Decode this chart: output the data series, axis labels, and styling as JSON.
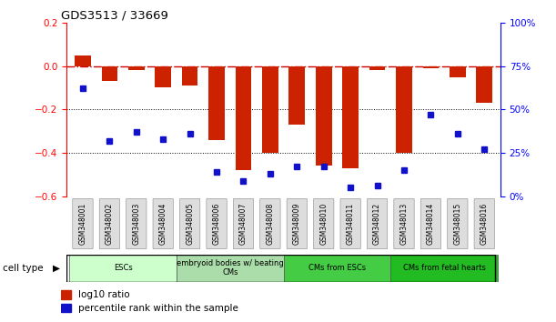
{
  "title": "GDS3513 / 33669",
  "samples": [
    "GSM348001",
    "GSM348002",
    "GSM348003",
    "GSM348004",
    "GSM348005",
    "GSM348006",
    "GSM348007",
    "GSM348008",
    "GSM348009",
    "GSM348010",
    "GSM348011",
    "GSM348012",
    "GSM348013",
    "GSM348014",
    "GSM348015",
    "GSM348016"
  ],
  "log10_ratio": [
    0.05,
    -0.07,
    -0.02,
    -0.1,
    -0.09,
    -0.34,
    -0.48,
    -0.4,
    -0.27,
    -0.46,
    -0.47,
    -0.02,
    -0.4,
    -0.01,
    -0.05,
    -0.17
  ],
  "percentile_rank": [
    62,
    32,
    37,
    33,
    36,
    14,
    9,
    13,
    17,
    17,
    5,
    6,
    15,
    47,
    36,
    27
  ],
  "bar_color": "#CC2200",
  "dot_color": "#1111CC",
  "zeroline_color": "#CC0000",
  "cell_groups": [
    {
      "label": "ESCs",
      "start": 0,
      "end": 4,
      "color": "#CCFFCC"
    },
    {
      "label": "embryoid bodies w/ beating\nCMs",
      "start": 4,
      "end": 8,
      "color": "#AADDAA"
    },
    {
      "label": "CMs from ESCs",
      "start": 8,
      "end": 12,
      "color": "#44CC44"
    },
    {
      "label": "CMs from fetal hearts",
      "start": 12,
      "end": 16,
      "color": "#22BB22"
    }
  ],
  "ylim_left": [
    -0.6,
    0.2
  ],
  "ylim_right": [
    0,
    100
  ],
  "yticks_left": [
    0.2,
    0.0,
    -0.2,
    -0.4,
    -0.6
  ],
  "yticks_right": [
    100,
    75,
    50,
    25,
    0
  ],
  "dotted_lines": [
    -0.2,
    -0.4
  ],
  "background_color": "#FFFFFF",
  "tick_label_fontsize": 7,
  "bar_width": 0.6
}
